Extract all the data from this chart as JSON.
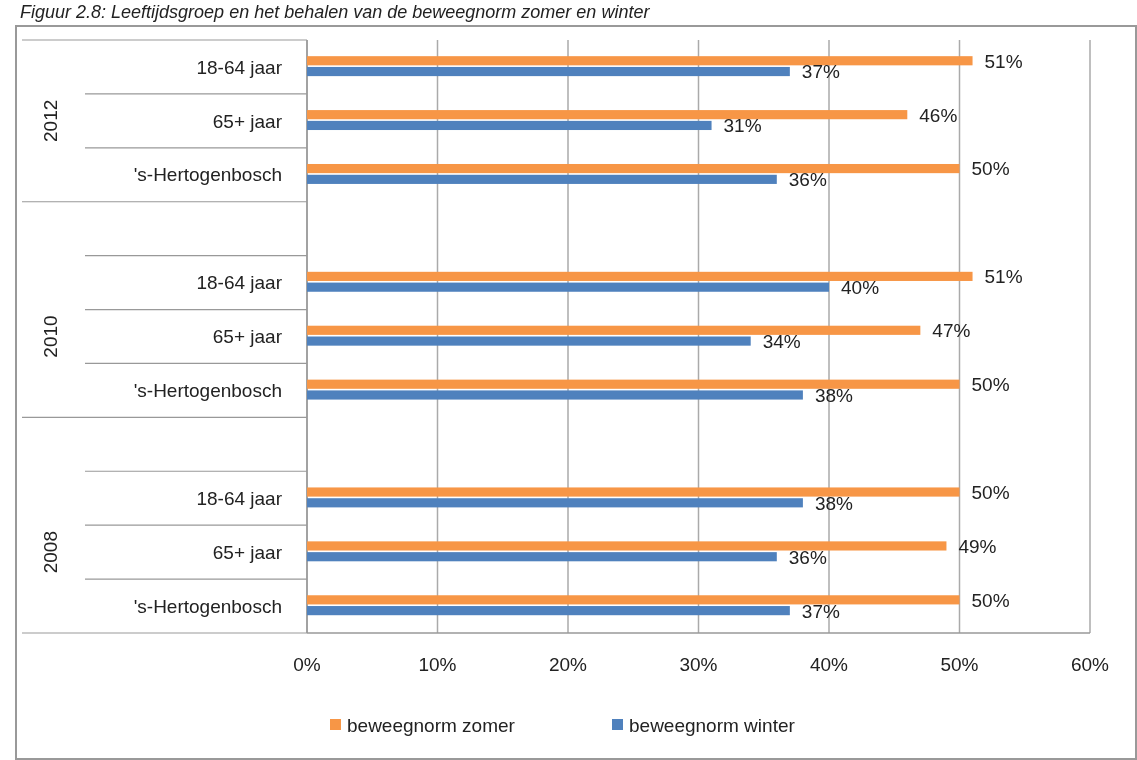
{
  "chart_data": {
    "type": "bar",
    "orientation": "horizontal",
    "title": "Figuur 2.8: Leeftijdsgroep en het behalen van de beweegnorm zomer en winter",
    "categories": [
      "18-64 jaar",
      "65+ jaar",
      "'s-Hertogenbosch",
      null,
      "18-64 jaar",
      "65+ jaar",
      "'s-Hertogenbosch",
      null,
      "18-64 jaar",
      "65+ jaar",
      "'s-Hertogenbosch"
    ],
    "series": [
      {
        "name": "beweegnorm zomer",
        "color": "#f79646",
        "values": [
          51,
          46,
          50,
          null,
          51,
          47,
          50,
          null,
          50,
          49,
          50
        ],
        "value_labels": [
          "51%",
          "46%",
          "50%",
          null,
          "51%",
          "47%",
          "50%",
          null,
          "50%",
          "49%",
          "50%"
        ]
      },
      {
        "name": "beweegnorm winter",
        "color": "#4f81bd",
        "values": [
          37,
          31,
          36,
          null,
          40,
          34,
          38,
          null,
          38,
          36,
          37
        ],
        "value_labels": [
          "37%",
          "31%",
          "36%",
          null,
          "40%",
          "34%",
          "38%",
          null,
          "38%",
          "36%",
          "37%"
        ]
      }
    ],
    "annotations": [
      "2012",
      "2010",
      "2008"
    ],
    "xlim": [
      0,
      60
    ],
    "xticks": [
      {
        "value": 0,
        "label": "0%"
      },
      {
        "value": 10,
        "label": "10%"
      },
      {
        "value": 20,
        "label": "20%"
      },
      {
        "value": 30,
        "label": "30%"
      },
      {
        "value": 40,
        "label": "40%"
      },
      {
        "value": 50,
        "label": "50%"
      },
      {
        "value": 60,
        "label": "60%"
      }
    ],
    "grid": "x",
    "legend": "bottom"
  }
}
